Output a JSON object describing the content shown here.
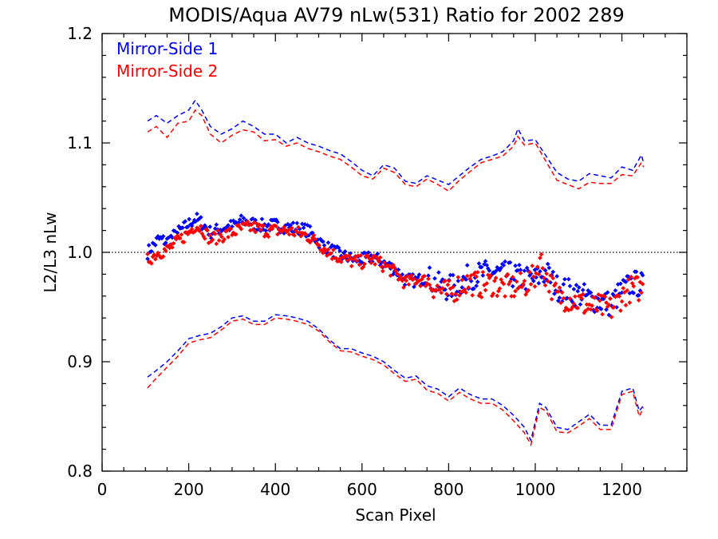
{
  "chart_data": {
    "type": "scatter",
    "title": "MODIS/Aqua AV79 nLw(531) Ratio for 2002 289",
    "xlabel": "Scan Pixel",
    "ylabel": "L2/L3 nLw",
    "xlim": [
      0,
      1350
    ],
    "ylim": [
      0.8,
      1.2
    ],
    "x_ticks": [
      "0",
      "200",
      "400",
      "600",
      "800",
      "1000",
      "1200"
    ],
    "y_ticks": [
      "0.8",
      "0.9",
      "1.0",
      "1.1",
      "1.2"
    ],
    "reference_line": 1.0,
    "legend_position": "top-left",
    "series": [
      {
        "name": "Mirror-Side 1",
        "color": "#0000ff",
        "mean_ratio": {
          "x": [
            105,
            130,
            150,
            175,
            200,
            215,
            230,
            250,
            275,
            300,
            325,
            350,
            375,
            400,
            425,
            450,
            475,
            500,
            525,
            550,
            575,
            600,
            625,
            650,
            675,
            700,
            725,
            750,
            775,
            800,
            825,
            850,
            875,
            900,
            925,
            950,
            975,
            1000,
            1025,
            1050,
            1075,
            1100,
            1125,
            1150,
            1175,
            1200,
            1225,
            1250
          ],
          "y": [
            1.0,
            1.012,
            1.01,
            1.018,
            1.026,
            1.031,
            1.027,
            1.018,
            1.022,
            1.024,
            1.029,
            1.026,
            1.024,
            1.025,
            1.023,
            1.022,
            1.02,
            1.01,
            1.003,
            0.998,
            0.994,
            0.993,
            0.996,
            0.99,
            0.985,
            0.975,
            0.974,
            0.977,
            0.97,
            0.967,
            0.972,
            0.978,
            0.98,
            0.982,
            0.98,
            0.979,
            0.976,
            0.975,
            0.982,
            0.968,
            0.965,
            0.962,
            0.958,
            0.955,
            0.953,
            0.965,
            0.972,
            0.97
          ]
        },
        "upper_bound": {
          "x": [
            105,
            125,
            150,
            175,
            200,
            215,
            230,
            250,
            275,
            300,
            325,
            350,
            375,
            400,
            425,
            450,
            475,
            500,
            525,
            550,
            575,
            600,
            625,
            650,
            675,
            700,
            725,
            750,
            775,
            800,
            825,
            850,
            875,
            900,
            925,
            950,
            960,
            975,
            1000,
            1025,
            1050,
            1075,
            1100,
            1125,
            1150,
            1175,
            1200,
            1225,
            1245,
            1250
          ],
          "y": [
            1.12,
            1.125,
            1.118,
            1.125,
            1.13,
            1.139,
            1.13,
            1.115,
            1.108,
            1.113,
            1.12,
            1.115,
            1.108,
            1.108,
            1.1,
            1.105,
            1.1,
            1.097,
            1.093,
            1.09,
            1.083,
            1.075,
            1.07,
            1.08,
            1.077,
            1.065,
            1.063,
            1.07,
            1.066,
            1.062,
            1.07,
            1.078,
            1.085,
            1.088,
            1.092,
            1.102,
            1.113,
            1.102,
            1.103,
            1.088,
            1.073,
            1.067,
            1.065,
            1.072,
            1.07,
            1.068,
            1.078,
            1.075,
            1.089,
            1.082
          ]
        },
        "lower_bound": {
          "x": [
            105,
            125,
            150,
            175,
            200,
            225,
            250,
            275,
            300,
            325,
            350,
            375,
            400,
            425,
            450,
            475,
            500,
            525,
            550,
            575,
            600,
            625,
            650,
            675,
            700,
            725,
            750,
            775,
            800,
            825,
            850,
            875,
            900,
            925,
            950,
            975,
            990,
            1010,
            1025,
            1050,
            1075,
            1100,
            1125,
            1150,
            1175,
            1200,
            1225,
            1240,
            1250
          ],
          "y": [
            0.886,
            0.892,
            0.9,
            0.91,
            0.921,
            0.924,
            0.926,
            0.932,
            0.94,
            0.942,
            0.937,
            0.937,
            0.943,
            0.942,
            0.94,
            0.937,
            0.93,
            0.92,
            0.912,
            0.912,
            0.908,
            0.905,
            0.9,
            0.892,
            0.885,
            0.887,
            0.878,
            0.875,
            0.868,
            0.876,
            0.87,
            0.866,
            0.866,
            0.86,
            0.851,
            0.84,
            0.828,
            0.862,
            0.858,
            0.84,
            0.838,
            0.845,
            0.852,
            0.842,
            0.842,
            0.873,
            0.876,
            0.855,
            0.86
          ]
        }
      },
      {
        "name": "Mirror-Side 2",
        "color": "#ff0000",
        "mean_ratio": {
          "x": [
            105,
            130,
            150,
            175,
            200,
            215,
            230,
            250,
            275,
            300,
            325,
            350,
            375,
            400,
            425,
            450,
            475,
            500,
            525,
            550,
            575,
            600,
            625,
            650,
            675,
            700,
            725,
            750,
            775,
            800,
            825,
            850,
            875,
            900,
            925,
            950,
            975,
            1000,
            1010,
            1025,
            1050,
            1075,
            1100,
            1125,
            1150,
            1175,
            1200,
            1225,
            1250
          ],
          "y": [
            0.993,
            1.0,
            1.002,
            1.01,
            1.018,
            1.025,
            1.022,
            1.012,
            1.015,
            1.018,
            1.022,
            1.023,
            1.02,
            1.02,
            1.02,
            1.018,
            1.015,
            1.008,
            1.0,
            0.995,
            0.992,
            0.991,
            0.994,
            0.988,
            0.982,
            0.972,
            0.975,
            0.974,
            0.966,
            0.962,
            0.97,
            0.973,
            0.97,
            0.972,
            0.968,
            0.968,
            0.97,
            0.978,
            0.995,
            0.978,
            0.96,
            0.958,
            0.955,
            0.95,
            0.95,
            0.948,
            0.96,
            0.968,
            0.966
          ]
        },
        "upper_bound": {
          "x": [
            105,
            125,
            150,
            175,
            200,
            215,
            230,
            250,
            275,
            300,
            325,
            350,
            375,
            400,
            425,
            450,
            475,
            500,
            525,
            550,
            575,
            600,
            625,
            650,
            675,
            700,
            725,
            750,
            775,
            800,
            825,
            850,
            875,
            900,
            925,
            950,
            960,
            975,
            1000,
            1025,
            1050,
            1075,
            1100,
            1125,
            1150,
            1175,
            1200,
            1225,
            1245,
            1250
          ],
          "y": [
            1.11,
            1.115,
            1.105,
            1.118,
            1.12,
            1.13,
            1.125,
            1.108,
            1.1,
            1.107,
            1.112,
            1.11,
            1.102,
            1.103,
            1.097,
            1.1,
            1.095,
            1.092,
            1.088,
            1.085,
            1.078,
            1.07,
            1.067,
            1.077,
            1.073,
            1.062,
            1.06,
            1.067,
            1.062,
            1.056,
            1.066,
            1.074,
            1.082,
            1.085,
            1.088,
            1.097,
            1.106,
            1.098,
            1.1,
            1.083,
            1.066,
            1.062,
            1.058,
            1.064,
            1.063,
            1.063,
            1.071,
            1.07,
            1.082,
            1.078
          ]
        },
        "lower_bound": {
          "x": [
            105,
            125,
            150,
            175,
            200,
            225,
            250,
            275,
            300,
            325,
            350,
            375,
            400,
            425,
            450,
            475,
            500,
            525,
            550,
            575,
            600,
            625,
            650,
            675,
            700,
            725,
            750,
            775,
            800,
            825,
            850,
            875,
            900,
            925,
            950,
            975,
            990,
            1010,
            1025,
            1050,
            1075,
            1100,
            1125,
            1150,
            1175,
            1200,
            1225,
            1240,
            1250
          ],
          "y": [
            0.876,
            0.885,
            0.895,
            0.905,
            0.917,
            0.92,
            0.922,
            0.929,
            0.937,
            0.939,
            0.934,
            0.934,
            0.94,
            0.939,
            0.937,
            0.934,
            0.928,
            0.918,
            0.91,
            0.909,
            0.905,
            0.902,
            0.897,
            0.889,
            0.882,
            0.884,
            0.874,
            0.871,
            0.864,
            0.872,
            0.866,
            0.862,
            0.862,
            0.856,
            0.846,
            0.835,
            0.824,
            0.858,
            0.855,
            0.836,
            0.835,
            0.841,
            0.848,
            0.838,
            0.838,
            0.87,
            0.873,
            0.85,
            0.858
          ]
        }
      }
    ]
  }
}
